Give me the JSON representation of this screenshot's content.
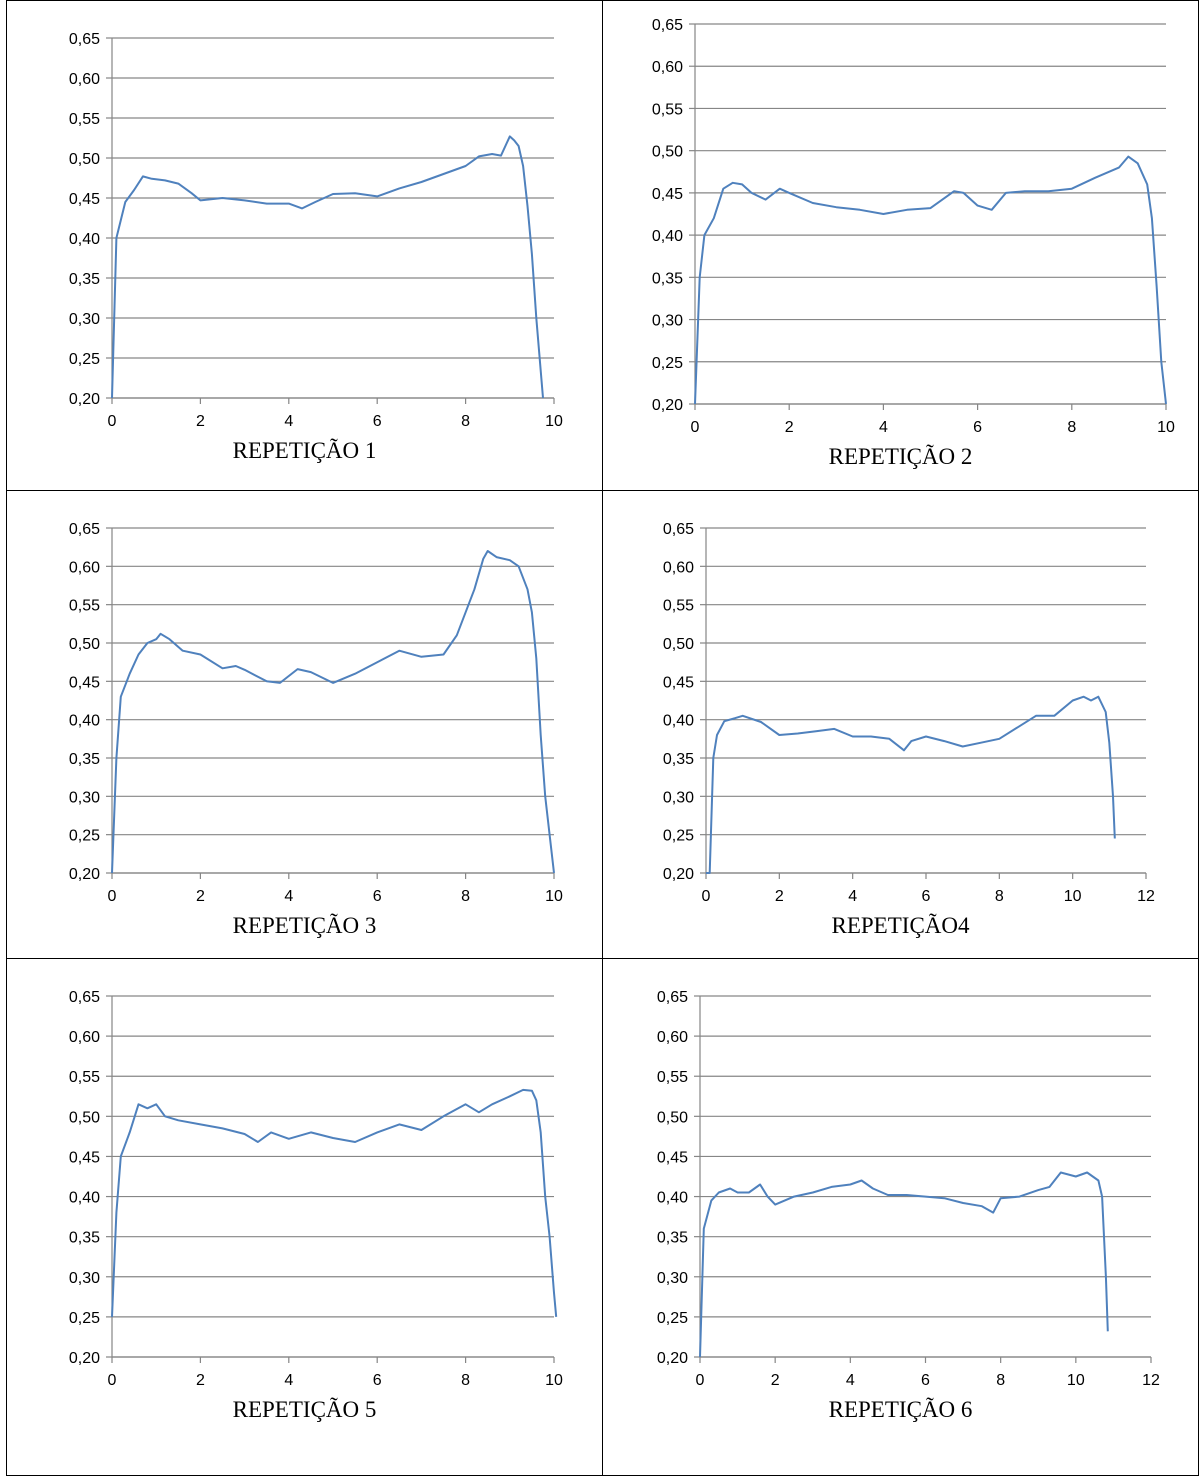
{
  "chart_data": [
    {
      "type": "line",
      "caption": "REPETIÇÃO 1",
      "xlim": [
        0,
        10
      ],
      "xticks": [
        0,
        2,
        4,
        6,
        8,
        10
      ],
      "ylim": [
        0.2,
        0.65
      ],
      "yticks": [
        "0,20",
        "0,25",
        "0,30",
        "0,35",
        "0,40",
        "0,45",
        "0,50",
        "0,55",
        "0,60",
        "0,65"
      ],
      "grid": true,
      "line_color": "#4f81bd",
      "series": [
        {
          "points": [
            [
              0.0,
              0.2
            ],
            [
              0.1,
              0.4
            ],
            [
              0.3,
              0.445
            ],
            [
              0.5,
              0.46
            ],
            [
              0.7,
              0.477
            ],
            [
              0.9,
              0.474
            ],
            [
              1.2,
              0.472
            ],
            [
              1.5,
              0.468
            ],
            [
              1.8,
              0.456
            ],
            [
              2.0,
              0.447
            ],
            [
              2.5,
              0.45
            ],
            [
              3.0,
              0.447
            ],
            [
              3.5,
              0.443
            ],
            [
              4.0,
              0.443
            ],
            [
              4.3,
              0.437
            ],
            [
              4.6,
              0.445
            ],
            [
              5.0,
              0.455
            ],
            [
              5.5,
              0.456
            ],
            [
              6.0,
              0.452
            ],
            [
              6.5,
              0.462
            ],
            [
              7.0,
              0.47
            ],
            [
              7.5,
              0.48
            ],
            [
              8.0,
              0.49
            ],
            [
              8.3,
              0.502
            ],
            [
              8.6,
              0.505
            ],
            [
              8.8,
              0.503
            ],
            [
              9.0,
              0.527
            ],
            [
              9.1,
              0.522
            ],
            [
              9.2,
              0.515
            ],
            [
              9.3,
              0.49
            ],
            [
              9.4,
              0.44
            ],
            [
              9.5,
              0.38
            ],
            [
              9.6,
              0.3
            ],
            [
              9.75,
              0.2
            ]
          ]
        }
      ]
    },
    {
      "type": "line",
      "caption": "REPETIÇÃO 2",
      "xlim": [
        0,
        10
      ],
      "xticks": [
        0,
        2,
        4,
        6,
        8,
        10
      ],
      "ylim": [
        0.2,
        0.65
      ],
      "yticks": [
        "0,20",
        "0,25",
        "0,30",
        "0,35",
        "0,40",
        "0,45",
        "0,50",
        "0,55",
        "0,60",
        "0,65"
      ],
      "grid": true,
      "line_color": "#4f81bd",
      "series": [
        {
          "points": [
            [
              0.0,
              0.2
            ],
            [
              0.1,
              0.35
            ],
            [
              0.2,
              0.4
            ],
            [
              0.4,
              0.42
            ],
            [
              0.6,
              0.455
            ],
            [
              0.8,
              0.462
            ],
            [
              1.0,
              0.46
            ],
            [
              1.2,
              0.45
            ],
            [
              1.5,
              0.442
            ],
            [
              1.8,
              0.455
            ],
            [
              2.0,
              0.45
            ],
            [
              2.5,
              0.438
            ],
            [
              3.0,
              0.433
            ],
            [
              3.5,
              0.43
            ],
            [
              4.0,
              0.425
            ],
            [
              4.5,
              0.43
            ],
            [
              5.0,
              0.432
            ],
            [
              5.5,
              0.452
            ],
            [
              5.7,
              0.45
            ],
            [
              6.0,
              0.435
            ],
            [
              6.3,
              0.43
            ],
            [
              6.6,
              0.45
            ],
            [
              7.0,
              0.452
            ],
            [
              7.5,
              0.452
            ],
            [
              8.0,
              0.455
            ],
            [
              8.5,
              0.468
            ],
            [
              9.0,
              0.48
            ],
            [
              9.2,
              0.493
            ],
            [
              9.4,
              0.485
            ],
            [
              9.6,
              0.46
            ],
            [
              9.7,
              0.42
            ],
            [
              9.8,
              0.34
            ],
            [
              9.9,
              0.25
            ],
            [
              10.0,
              0.2
            ]
          ]
        }
      ]
    },
    {
      "type": "line",
      "caption": "REPETIÇÃO 3",
      "xlim": [
        0,
        10
      ],
      "xticks": [
        0,
        2,
        4,
        6,
        8,
        10
      ],
      "ylim": [
        0.2,
        0.65
      ],
      "yticks": [
        "0,20",
        "0,25",
        "0,30",
        "0,35",
        "0,40",
        "0,45",
        "0,50",
        "0,55",
        "0,60",
        "0,65"
      ],
      "grid": true,
      "line_color": "#4f81bd",
      "series": [
        {
          "points": [
            [
              0.0,
              0.2
            ],
            [
              0.1,
              0.35
            ],
            [
              0.2,
              0.43
            ],
            [
              0.4,
              0.46
            ],
            [
              0.6,
              0.485
            ],
            [
              0.8,
              0.5
            ],
            [
              1.0,
              0.505
            ],
            [
              1.1,
              0.512
            ],
            [
              1.3,
              0.505
            ],
            [
              1.6,
              0.49
            ],
            [
              2.0,
              0.485
            ],
            [
              2.5,
              0.467
            ],
            [
              2.8,
              0.47
            ],
            [
              3.0,
              0.465
            ],
            [
              3.5,
              0.45
            ],
            [
              3.8,
              0.448
            ],
            [
              4.2,
              0.466
            ],
            [
              4.5,
              0.462
            ],
            [
              5.0,
              0.448
            ],
            [
              5.5,
              0.46
            ],
            [
              6.0,
              0.475
            ],
            [
              6.5,
              0.49
            ],
            [
              7.0,
              0.482
            ],
            [
              7.5,
              0.485
            ],
            [
              7.8,
              0.51
            ],
            [
              8.0,
              0.54
            ],
            [
              8.2,
              0.57
            ],
            [
              8.4,
              0.61
            ],
            [
              8.5,
              0.62
            ],
            [
              8.7,
              0.612
            ],
            [
              9.0,
              0.608
            ],
            [
              9.2,
              0.6
            ],
            [
              9.4,
              0.57
            ],
            [
              9.5,
              0.54
            ],
            [
              9.6,
              0.48
            ],
            [
              9.7,
              0.38
            ],
            [
              9.8,
              0.3
            ],
            [
              9.9,
              0.25
            ],
            [
              10.0,
              0.2
            ]
          ]
        }
      ]
    },
    {
      "type": "line",
      "caption": "REPETIÇÃO4",
      "xlim": [
        0,
        12
      ],
      "xticks": [
        0,
        2,
        4,
        6,
        8,
        10,
        12
      ],
      "ylim": [
        0.2,
        0.65
      ],
      "yticks": [
        "0,20",
        "0,25",
        "0,30",
        "0,35",
        "0,40",
        "0,45",
        "0,50",
        "0,55",
        "0,60",
        "0,65"
      ],
      "grid": true,
      "line_color": "#4f81bd",
      "series": [
        {
          "points": [
            [
              0.0,
              0.2
            ],
            [
              0.1,
              0.2
            ],
            [
              0.2,
              0.35
            ],
            [
              0.3,
              0.38
            ],
            [
              0.5,
              0.398
            ],
            [
              0.8,
              0.402
            ],
            [
              1.0,
              0.405
            ],
            [
              1.5,
              0.397
            ],
            [
              2.0,
              0.38
            ],
            [
              2.5,
              0.382
            ],
            [
              3.0,
              0.385
            ],
            [
              3.5,
              0.388
            ],
            [
              4.0,
              0.378
            ],
            [
              4.5,
              0.378
            ],
            [
              5.0,
              0.375
            ],
            [
              5.4,
              0.36
            ],
            [
              5.6,
              0.372
            ],
            [
              6.0,
              0.378
            ],
            [
              6.5,
              0.372
            ],
            [
              7.0,
              0.365
            ],
            [
              7.5,
              0.37
            ],
            [
              8.0,
              0.375
            ],
            [
              8.5,
              0.39
            ],
            [
              9.0,
              0.405
            ],
            [
              9.5,
              0.405
            ],
            [
              10.0,
              0.425
            ],
            [
              10.3,
              0.43
            ],
            [
              10.5,
              0.425
            ],
            [
              10.7,
              0.43
            ],
            [
              10.9,
              0.41
            ],
            [
              11.0,
              0.37
            ],
            [
              11.1,
              0.3
            ],
            [
              11.15,
              0.245
            ]
          ]
        }
      ]
    },
    {
      "type": "line",
      "caption": "REPETIÇÃO 5",
      "xlim": [
        0,
        10
      ],
      "xticks": [
        0,
        2,
        4,
        6,
        8,
        10
      ],
      "ylim": [
        0.2,
        0.65
      ],
      "yticks": [
        "0,20",
        "0,25",
        "0,30",
        "0,35",
        "0,40",
        "0,45",
        "0,50",
        "0,55",
        "0,60",
        "0,65"
      ],
      "grid": true,
      "line_color": "#4f81bd",
      "series": [
        {
          "points": [
            [
              0.0,
              0.25
            ],
            [
              0.1,
              0.38
            ],
            [
              0.2,
              0.45
            ],
            [
              0.4,
              0.48
            ],
            [
              0.6,
              0.515
            ],
            [
              0.8,
              0.51
            ],
            [
              1.0,
              0.515
            ],
            [
              1.2,
              0.5
            ],
            [
              1.5,
              0.495
            ],
            [
              2.0,
              0.49
            ],
            [
              2.5,
              0.485
            ],
            [
              3.0,
              0.478
            ],
            [
              3.3,
              0.468
            ],
            [
              3.6,
              0.48
            ],
            [
              4.0,
              0.472
            ],
            [
              4.5,
              0.48
            ],
            [
              5.0,
              0.473
            ],
            [
              5.5,
              0.468
            ],
            [
              6.0,
              0.48
            ],
            [
              6.5,
              0.49
            ],
            [
              7.0,
              0.483
            ],
            [
              7.5,
              0.5
            ],
            [
              8.0,
              0.515
            ],
            [
              8.3,
              0.505
            ],
            [
              8.6,
              0.515
            ],
            [
              9.0,
              0.525
            ],
            [
              9.3,
              0.533
            ],
            [
              9.5,
              0.532
            ],
            [
              9.6,
              0.52
            ],
            [
              9.7,
              0.48
            ],
            [
              9.8,
              0.4
            ],
            [
              9.9,
              0.35
            ],
            [
              10.0,
              0.28
            ],
            [
              10.05,
              0.25
            ]
          ]
        }
      ]
    },
    {
      "type": "line",
      "caption": "REPETIÇÃO 6",
      "xlim": [
        0,
        12
      ],
      "xticks": [
        0,
        2,
        4,
        6,
        8,
        10,
        12
      ],
      "ylim": [
        0.2,
        0.65
      ],
      "yticks": [
        "0,20",
        "0,25",
        "0,30",
        "0,35",
        "0,40",
        "0,45",
        "0,50",
        "0,55",
        "0,60",
        "0,65"
      ],
      "grid": true,
      "line_color": "#4f81bd",
      "series": [
        {
          "points": [
            [
              0.0,
              0.2
            ],
            [
              0.1,
              0.36
            ],
            [
              0.3,
              0.395
            ],
            [
              0.5,
              0.405
            ],
            [
              0.8,
              0.41
            ],
            [
              1.0,
              0.405
            ],
            [
              1.3,
              0.405
            ],
            [
              1.6,
              0.415
            ],
            [
              1.8,
              0.4
            ],
            [
              2.0,
              0.39
            ],
            [
              2.5,
              0.4
            ],
            [
              3.0,
              0.405
            ],
            [
              3.5,
              0.412
            ],
            [
              4.0,
              0.415
            ],
            [
              4.3,
              0.42
            ],
            [
              4.6,
              0.41
            ],
            [
              5.0,
              0.402
            ],
            [
              5.5,
              0.402
            ],
            [
              6.0,
              0.4
            ],
            [
              6.5,
              0.398
            ],
            [
              7.0,
              0.392
            ],
            [
              7.5,
              0.388
            ],
            [
              7.8,
              0.38
            ],
            [
              8.0,
              0.398
            ],
            [
              8.5,
              0.4
            ],
            [
              9.0,
              0.408
            ],
            [
              9.3,
              0.412
            ],
            [
              9.6,
              0.43
            ],
            [
              10.0,
              0.425
            ],
            [
              10.3,
              0.43
            ],
            [
              10.6,
              0.42
            ],
            [
              10.7,
              0.4
            ],
            [
              10.8,
              0.3
            ],
            [
              10.85,
              0.232
            ]
          ]
        }
      ]
    }
  ]
}
